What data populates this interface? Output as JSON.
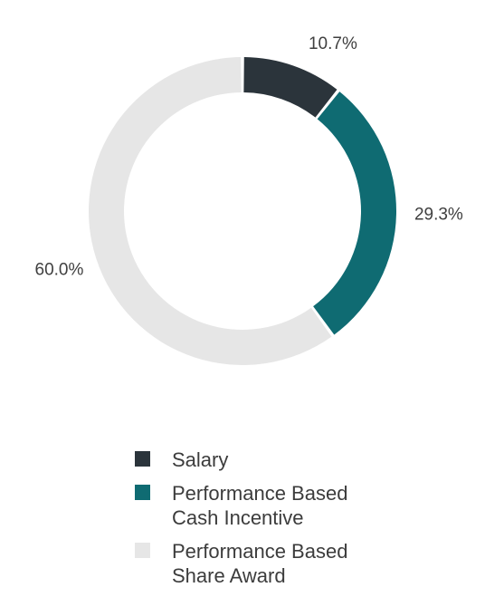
{
  "chart_data": {
    "type": "pie",
    "subtype": "donut",
    "categories": [
      "Salary",
      "Performance Based Cash Incentive",
      "Performance Based Share Award"
    ],
    "values": [
      10.7,
      29.3,
      60.0
    ],
    "value_labels": [
      "10.7%",
      "29.3%",
      "60.0%"
    ],
    "colors": [
      "#2b343b",
      "#0f6b72",
      "#e6e6e6"
    ],
    "legend": {
      "placement": "bottom",
      "entries": [
        {
          "text": "Salary",
          "color": "#2b343b"
        },
        {
          "text": "Performance Based\nCash Incentive",
          "color": "#0f6b72"
        },
        {
          "text": "Performance Based\nShare Award",
          "color": "#e6e6e6"
        }
      ]
    }
  }
}
